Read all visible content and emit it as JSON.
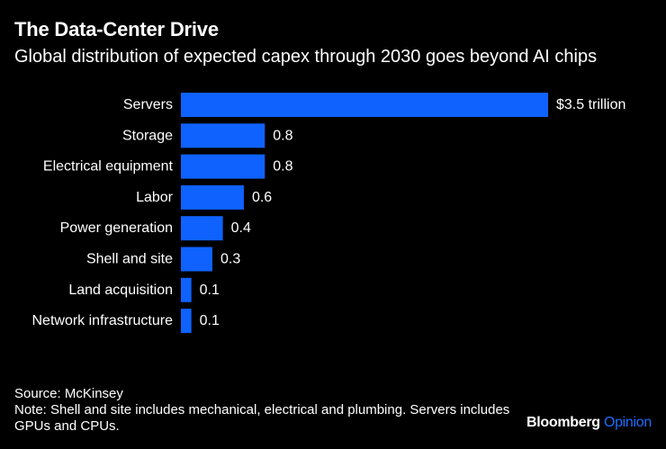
{
  "header": {
    "title": "The Data-Center Drive",
    "subtitle": "Global distribution of expected capex through 2030 goes beyond AI chips"
  },
  "chart_data": {
    "type": "bar",
    "orientation": "horizontal",
    "title": "The Data-Center Drive",
    "subtitle": "Global distribution of expected capex through 2030 goes beyond AI chips",
    "xlabel": "",
    "ylabel": "",
    "unit": "trillion USD",
    "xlim": [
      0,
      3.5
    ],
    "grid": false,
    "categories": [
      "Servers",
      "Storage",
      "Electrical equipment",
      "Labor",
      "Power generation",
      "Shell and site",
      "Land acquisition",
      "Network infrastructure"
    ],
    "values": [
      3.5,
      0.8,
      0.8,
      0.6,
      0.4,
      0.3,
      0.1,
      0.1
    ],
    "value_labels": [
      "$3.5 trillion",
      "0.8",
      "0.8",
      "0.6",
      "0.4",
      "0.3",
      "0.1",
      "0.1"
    ],
    "bar_color": "#0f62fe"
  },
  "footer": {
    "source": "Source: McKinsey",
    "note": "Note: Shell and site includes mechanical, electrical and plumbing. Servers includes GPUs and CPUs."
  },
  "brand": {
    "name": "Bloomberg",
    "section": "Opinion",
    "accent_color": "#1a6dff"
  },
  "colors": {
    "background": "#000000",
    "text": "#ffffff"
  }
}
